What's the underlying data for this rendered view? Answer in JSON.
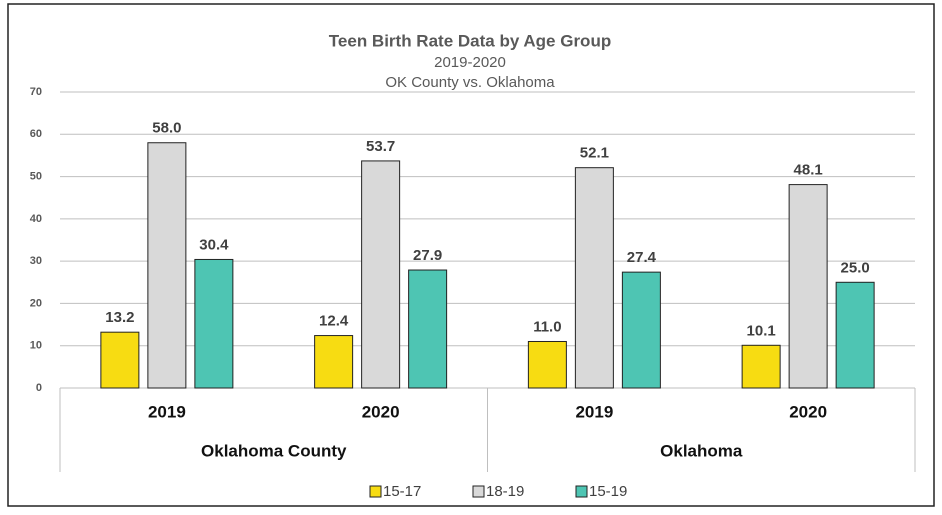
{
  "chart_data": {
    "type": "bar",
    "title": "Teen Birth Rate Data by Age Group",
    "subtitle": [
      "2019-2020",
      "OK County vs. Oklahoma"
    ],
    "categories": [
      "2019",
      "2020",
      "2019",
      "2020"
    ],
    "category_groups": [
      "Oklahoma County",
      "Oklahoma"
    ],
    "series": [
      {
        "name": "15-17",
        "color": "#f7dc12",
        "values": [
          13.2,
          12.4,
          11.0,
          10.1
        ],
        "value_labels": [
          "13.2",
          "12.4",
          "11.0",
          "10.1"
        ]
      },
      {
        "name": "18-19",
        "color": "#d9d9d9",
        "values": [
          58.0,
          53.7,
          52.1,
          48.1
        ],
        "value_labels": [
          "58.0",
          "53.7",
          "52.1",
          "48.1"
        ]
      },
      {
        "name": "15-19",
        "color": "#4ec5b3",
        "values": [
          30.4,
          27.9,
          27.4,
          25.0
        ],
        "value_labels": [
          "30.4",
          "27.9",
          "27.4",
          "25.0"
        ]
      }
    ],
    "ylim": [
      0,
      70
    ],
    "yticks": [
      0,
      10,
      20,
      30,
      40,
      50,
      60,
      70
    ],
    "grid": true,
    "legend": "bottom"
  }
}
